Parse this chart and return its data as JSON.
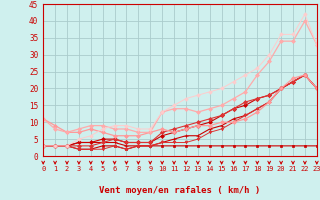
{
  "xlabel": "Vent moyen/en rafales ( km/h )",
  "background_color": "#cff0ee",
  "grid_color": "#aacccc",
  "x_min": 0,
  "x_max": 23,
  "y_min": 0,
  "y_max": 45,
  "lines": [
    {
      "x": [
        0,
        1,
        2,
        3,
        4,
        5,
        6,
        7,
        8,
        9,
        10,
        11,
        12,
        13,
        14,
        15,
        16,
        17,
        18,
        19,
        20,
        21,
        22,
        23
      ],
      "y": [
        3,
        3,
        3,
        2,
        2,
        3,
        3,
        2,
        3,
        3,
        3,
        3,
        3,
        3,
        3,
        3,
        3,
        3,
        3,
        3,
        3,
        3,
        3,
        3
      ],
      "color": "#cc0000",
      "marker": "s",
      "markersize": 2.0,
      "linewidth": 0.8
    },
    {
      "x": [
        0,
        1,
        2,
        3,
        4,
        5,
        6,
        7,
        8,
        9,
        10,
        11,
        12,
        13,
        14,
        15,
        16,
        17,
        18,
        19,
        20,
        21,
        22,
        23
      ],
      "y": [
        3,
        3,
        3,
        4,
        4,
        4,
        4,
        3,
        3,
        3,
        4,
        5,
        6,
        6,
        8,
        9,
        11,
        12,
        14,
        16,
        20,
        22,
        24,
        20
      ],
      "color": "#cc0000",
      "marker": "+",
      "markersize": 3.0,
      "linewidth": 0.8
    },
    {
      "x": [
        0,
        1,
        2,
        3,
        4,
        5,
        6,
        7,
        8,
        9,
        10,
        11,
        12,
        13,
        14,
        15,
        16,
        17,
        18,
        19,
        20,
        21,
        22,
        23
      ],
      "y": [
        3,
        3,
        3,
        4,
        4,
        5,
        5,
        4,
        4,
        4,
        6,
        7,
        8,
        9,
        10,
        12,
        14,
        15,
        17,
        18,
        20,
        22,
        24,
        20
      ],
      "color": "#cc0000",
      "marker": "D",
      "markersize": 2.0,
      "linewidth": 0.8
    },
    {
      "x": [
        0,
        1,
        2,
        3,
        4,
        5,
        6,
        7,
        8,
        9,
        10,
        11,
        12,
        13,
        14,
        15,
        16,
        17,
        18,
        19,
        20,
        21,
        22,
        23
      ],
      "y": [
        3,
        3,
        3,
        3,
        3,
        4,
        5,
        4,
        4,
        4,
        7,
        8,
        9,
        10,
        11,
        12,
        14,
        16,
        17,
        18,
        20,
        22,
        24,
        20
      ],
      "color": "#dd3333",
      "marker": "D",
      "markersize": 2.0,
      "linewidth": 0.8
    },
    {
      "x": [
        0,
        1,
        2,
        3,
        4,
        5,
        6,
        7,
        8,
        9,
        10,
        11,
        12,
        13,
        14,
        15,
        16,
        17,
        18,
        19,
        20,
        21,
        22,
        23
      ],
      "y": [
        3,
        3,
        3,
        2,
        2,
        2,
        3,
        2,
        3,
        3,
        4,
        4,
        4,
        5,
        7,
        8,
        10,
        12,
        14,
        16,
        20,
        22,
        24,
        20
      ],
      "color": "#dd3333",
      "marker": "v",
      "markersize": 2.0,
      "linewidth": 0.7
    },
    {
      "x": [
        0,
        1,
        2,
        3,
        4,
        5,
        6,
        7,
        8,
        9,
        10,
        11,
        12,
        13,
        14,
        15,
        16,
        17,
        18,
        19,
        20,
        21,
        22,
        23
      ],
      "y": [
        11,
        9,
        7,
        7,
        8,
        7,
        6,
        6,
        6,
        7,
        8,
        7,
        8,
        9,
        9,
        10,
        10,
        11,
        13,
        16,
        20,
        23,
        24,
        20
      ],
      "color": "#ff9999",
      "marker": "D",
      "markersize": 2.0,
      "linewidth": 0.9
    },
    {
      "x": [
        0,
        1,
        2,
        3,
        4,
        5,
        6,
        7,
        8,
        9,
        10,
        11,
        12,
        13,
        14,
        15,
        16,
        17,
        18,
        19,
        20,
        21,
        22,
        23
      ],
      "y": [
        11,
        8,
        7,
        8,
        9,
        9,
        8,
        8,
        7,
        7,
        13,
        14,
        14,
        13,
        14,
        15,
        17,
        19,
        24,
        28,
        34,
        34,
        40,
        33
      ],
      "color": "#ffaaaa",
      "marker": "D",
      "markersize": 2.0,
      "linewidth": 0.9
    },
    {
      "x": [
        0,
        1,
        2,
        3,
        4,
        5,
        6,
        7,
        8,
        9,
        10,
        11,
        12,
        13,
        14,
        15,
        16,
        17,
        18,
        19,
        20,
        21,
        22,
        23
      ],
      "y": [
        3,
        3,
        3,
        5,
        6,
        8,
        9,
        9,
        8,
        8,
        13,
        15,
        17,
        18,
        19,
        20,
        22,
        24,
        26,
        30,
        36,
        36,
        42,
        33
      ],
      "color": "#ffcccc",
      "marker": "D",
      "markersize": 1.8,
      "linewidth": 0.7
    }
  ],
  "arrow_color": "#cc0000",
  "ytick_labels": [
    "0",
    "5",
    "10",
    "15",
    "20",
    "25",
    "30",
    "35",
    "40",
    "45"
  ],
  "ytick_vals": [
    0,
    5,
    10,
    15,
    20,
    25,
    30,
    35,
    40,
    45
  ],
  "xtick_vals": [
    0,
    1,
    2,
    3,
    4,
    5,
    6,
    7,
    8,
    9,
    10,
    11,
    12,
    13,
    14,
    15,
    16,
    17,
    18,
    19,
    20,
    21,
    22,
    23
  ]
}
